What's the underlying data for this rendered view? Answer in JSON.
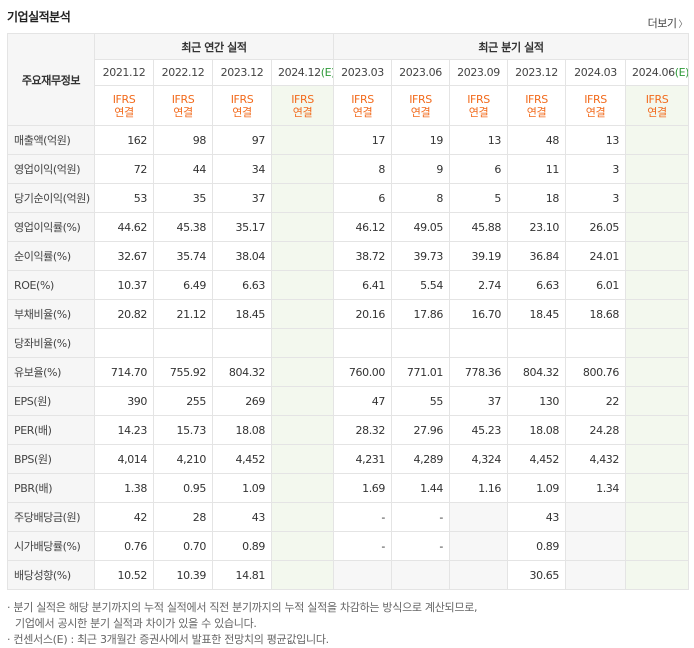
{
  "header": {
    "title": "기업실적분석",
    "more_label": "더보기"
  },
  "table": {
    "row_header_label": "주요재무정보",
    "annual_group_label": "최근 연간 실적",
    "quarterly_group_label": "최근 분기 실적",
    "annual_periods": [
      {
        "label": "2021.12",
        "std_line1": "IFRS",
        "std_line2": "연결"
      },
      {
        "label": "2022.12",
        "std_line1": "IFRS",
        "std_line2": "연결"
      },
      {
        "label": "2023.12",
        "std_line1": "IFRS",
        "std_line2": "연결"
      },
      {
        "label": "2024.12",
        "est": "(E)",
        "std_line1": "IFRS",
        "std_line2": "연결"
      }
    ],
    "quarterly_periods": [
      {
        "label": "2023.03",
        "std_line1": "IFRS",
        "std_line2": "연결"
      },
      {
        "label": "2023.06",
        "std_line1": "IFRS",
        "std_line2": "연결"
      },
      {
        "label": "2023.09",
        "std_line1": "IFRS",
        "std_line2": "연결"
      },
      {
        "label": "2023.12",
        "std_line1": "IFRS",
        "std_line2": "연결"
      },
      {
        "label": "2024.03",
        "std_line1": "IFRS",
        "std_line2": "연결"
      },
      {
        "label": "2024.06",
        "est": "(E)",
        "std_line1": "IFRS",
        "std_line2": "연결"
      }
    ],
    "rows": [
      {
        "label": "매출액(억원)",
        "annual": [
          "162",
          "98",
          "97",
          ""
        ],
        "quarterly": [
          "17",
          "19",
          "13",
          "48",
          "13",
          ""
        ]
      },
      {
        "label": "영업이익(억원)",
        "annual": [
          "72",
          "44",
          "34",
          ""
        ],
        "quarterly": [
          "8",
          "9",
          "6",
          "11",
          "3",
          ""
        ]
      },
      {
        "label": "당기순이익(억원)",
        "annual": [
          "53",
          "35",
          "37",
          ""
        ],
        "quarterly": [
          "6",
          "8",
          "5",
          "18",
          "3",
          ""
        ]
      },
      {
        "label": "영업이익률(%)",
        "annual": [
          "44.62",
          "45.38",
          "35.17",
          ""
        ],
        "quarterly": [
          "46.12",
          "49.05",
          "45.88",
          "23.10",
          "26.05",
          ""
        ]
      },
      {
        "label": "순이익률(%)",
        "annual": [
          "32.67",
          "35.74",
          "38.04",
          ""
        ],
        "quarterly": [
          "38.72",
          "39.73",
          "39.19",
          "36.84",
          "24.01",
          ""
        ]
      },
      {
        "label": "ROE(%)",
        "annual": [
          "10.37",
          "6.49",
          "6.63",
          ""
        ],
        "quarterly": [
          "6.41",
          "5.54",
          "2.74",
          "6.63",
          "6.01",
          ""
        ]
      },
      {
        "label": "부채비율(%)",
        "annual": [
          "20.82",
          "21.12",
          "18.45",
          ""
        ],
        "quarterly": [
          "20.16",
          "17.86",
          "16.70",
          "18.45",
          "18.68",
          ""
        ]
      },
      {
        "label": "당좌비율(%)",
        "annual": [
          "",
          "",
          "",
          ""
        ],
        "quarterly": [
          "",
          "",
          "",
          "",
          "",
          ""
        ]
      },
      {
        "label": "유보율(%)",
        "annual": [
          "714.70",
          "755.92",
          "804.32",
          ""
        ],
        "quarterly": [
          "760.00",
          "771.01",
          "778.36",
          "804.32",
          "800.76",
          ""
        ]
      },
      {
        "label": "EPS(원)",
        "annual": [
          "390",
          "255",
          "269",
          ""
        ],
        "quarterly": [
          "47",
          "55",
          "37",
          "130",
          "22",
          ""
        ]
      },
      {
        "label": "PER(배)",
        "annual": [
          "14.23",
          "15.73",
          "18.08",
          ""
        ],
        "quarterly": [
          "28.32",
          "27.96",
          "45.23",
          "18.08",
          "24.28",
          ""
        ]
      },
      {
        "label": "BPS(원)",
        "annual": [
          "4,014",
          "4,210",
          "4,452",
          ""
        ],
        "quarterly": [
          "4,231",
          "4,289",
          "4,324",
          "4,452",
          "4,432",
          ""
        ]
      },
      {
        "label": "PBR(배)",
        "annual": [
          "1.38",
          "0.95",
          "1.09",
          ""
        ],
        "quarterly": [
          "1.69",
          "1.44",
          "1.16",
          "1.09",
          "1.34",
          ""
        ]
      },
      {
        "label": "주당배당금(원)",
        "annual": [
          "42",
          "28",
          "43",
          ""
        ],
        "quarterly": [
          "-",
          "-",
          "",
          "43",
          "",
          ""
        ]
      },
      {
        "label": "시가배당률(%)",
        "annual": [
          "0.76",
          "0.70",
          "0.89",
          ""
        ],
        "quarterly": [
          "-",
          "-",
          "",
          "0.89",
          "",
          ""
        ]
      },
      {
        "label": "배당성향(%)",
        "annual": [
          "10.52",
          "10.39",
          "14.81",
          ""
        ],
        "quarterly": [
          "",
          "",
          "",
          "30.65",
          "",
          ""
        ]
      }
    ]
  },
  "notes": [
    "· 분기 실적은 해당 분기까지의 누적 실적에서 직전 분기까지의 누적 실적을 차감하는 방식으로 계산되므로,",
    "기업에서 공시한 분기 실적과 차이가 있을 수 있습니다.",
    "· 컨센서스(E) : 최근 3개월간 증권사에서 발표한 전망치의 평균값입니다."
  ]
}
